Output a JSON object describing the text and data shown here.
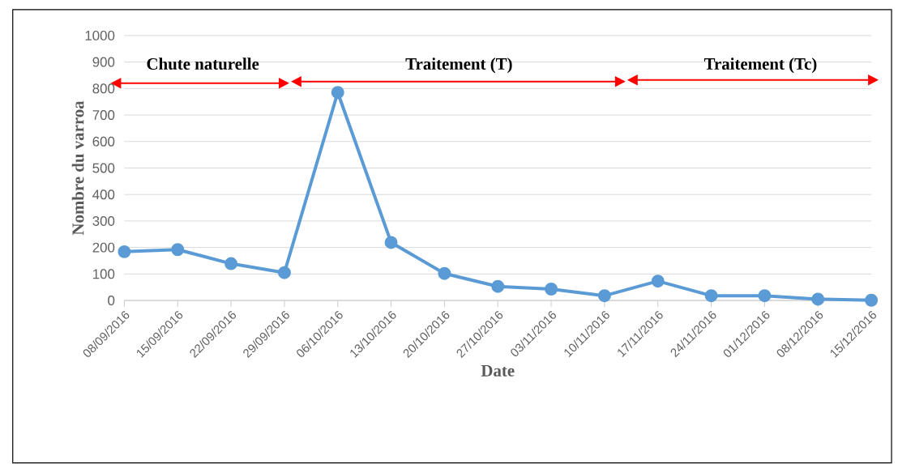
{
  "chart_data": {
    "type": "line",
    "xlabel": "Date",
    "ylabel": "Nombre du varroa",
    "categories": [
      "08/09/2016",
      "15/09/2016",
      "22/09/2016",
      "29/09/2016",
      "06/10/2016",
      "13/10/2016",
      "20/10/2016",
      "27/10/2016",
      "03/11/2016",
      "10/11/2016",
      "17/11/2016",
      "24/11/2016",
      "01/12/2016",
      "08/12/2016",
      "15/12/2016"
    ],
    "series": [
      {
        "color": "#5b9bd5",
        "values": [
          184,
          192,
          139,
          105,
          785,
          219,
          102,
          53,
          43,
          18,
          73,
          18,
          18,
          5,
          1
        ]
      }
    ],
    "ylim": [
      0,
      1000
    ],
    "yticks": [
      0,
      100,
      200,
      300,
      400,
      500,
      600,
      700,
      800,
      900,
      1000
    ],
    "grid": "y",
    "marker": "circle",
    "line_style": "solid",
    "annotations": [
      "Chute naturelle",
      "Traitement (T)",
      "Traitement (Tc)"
    ]
  }
}
